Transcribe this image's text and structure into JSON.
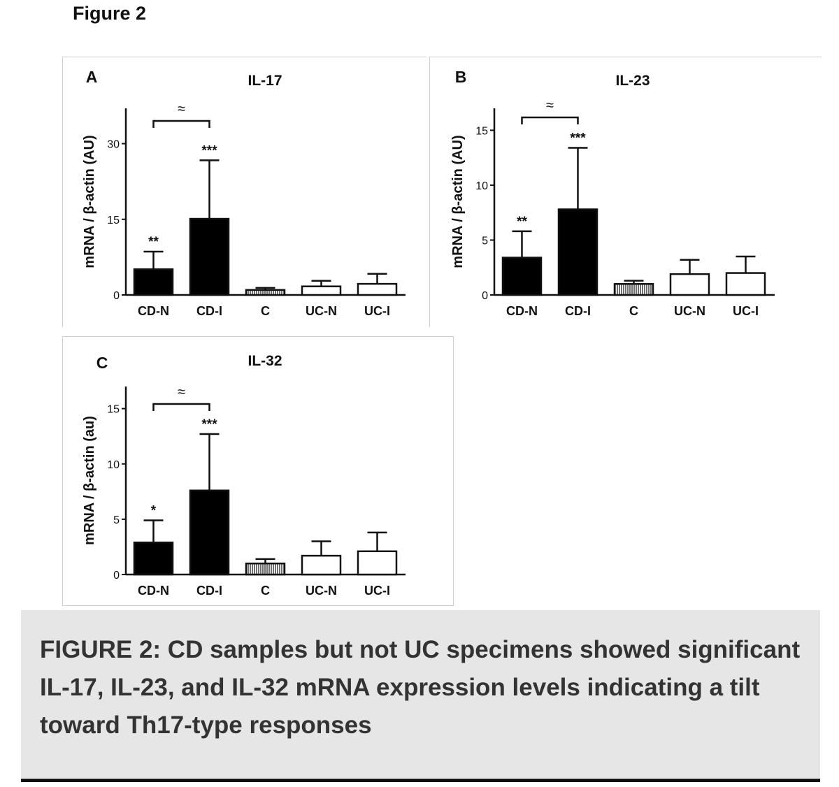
{
  "figure_label": "Figure 2",
  "caption": "FIGURE 2: CD samples but not UC specimens showed significant IL-17, IL-23, and IL-32 mRNA expression levels indicating a tilt toward Th17-type responses",
  "chart_data": [
    {
      "panel": "A",
      "type": "bar",
      "title": "IL-17",
      "ylabel": "mRNA / β-actin (AU)",
      "xlabel": "",
      "ylim": [
        0,
        37
      ],
      "yticks": [
        0,
        15,
        30
      ],
      "categories": [
        "CD-N",
        "CD-I",
        "C",
        "UC-N",
        "UC-I"
      ],
      "values": [
        5.1,
        15.1,
        1.0,
        1.7,
        2.2
      ],
      "errors": [
        3.5,
        11.6,
        0.4,
        1.1,
        2.0
      ],
      "significance": [
        "**",
        "***",
        "",
        "",
        ""
      ],
      "bar_fills": [
        "black",
        "black",
        "hatched",
        "white",
        "white"
      ],
      "comparison": {
        "from": "CD-N",
        "to": "CD-I",
        "symbol": "≈"
      }
    },
    {
      "panel": "B",
      "type": "bar",
      "title": "IL-23",
      "ylabel": "mRNA / β-actin (AU)",
      "xlabel": "",
      "ylim": [
        0,
        17
      ],
      "yticks": [
        0,
        5,
        10,
        15
      ],
      "categories": [
        "CD-N",
        "CD-I",
        "C",
        "UC-N",
        "UC-I"
      ],
      "values": [
        3.4,
        7.8,
        1.0,
        1.9,
        2.0
      ],
      "errors": [
        2.4,
        5.6,
        0.3,
        1.3,
        1.5
      ],
      "significance": [
        "**",
        "***",
        "",
        "",
        ""
      ],
      "bar_fills": [
        "black",
        "black",
        "hatched",
        "white",
        "white"
      ],
      "comparison": {
        "from": "CD-N",
        "to": "CD-I",
        "symbol": "≈"
      }
    },
    {
      "panel": "C",
      "type": "bar",
      "title": "IL-32",
      "ylabel": "mRNA / β-actin (au)",
      "xlabel": "",
      "ylim": [
        0,
        17
      ],
      "yticks": [
        0,
        5,
        10,
        15
      ],
      "categories": [
        "CD-N",
        "CD-I",
        "C",
        "UC-N",
        "UC-I"
      ],
      "values": [
        2.9,
        7.6,
        1.0,
        1.7,
        2.1
      ],
      "errors": [
        2.0,
        5.1,
        0.4,
        1.3,
        1.7
      ],
      "significance": [
        "*",
        "***",
        "",
        "",
        ""
      ],
      "bar_fills": [
        "black",
        "black",
        "hatched",
        "white",
        "white"
      ],
      "comparison": {
        "from": "CD-N",
        "to": "CD-I",
        "symbol": "≈"
      }
    }
  ]
}
